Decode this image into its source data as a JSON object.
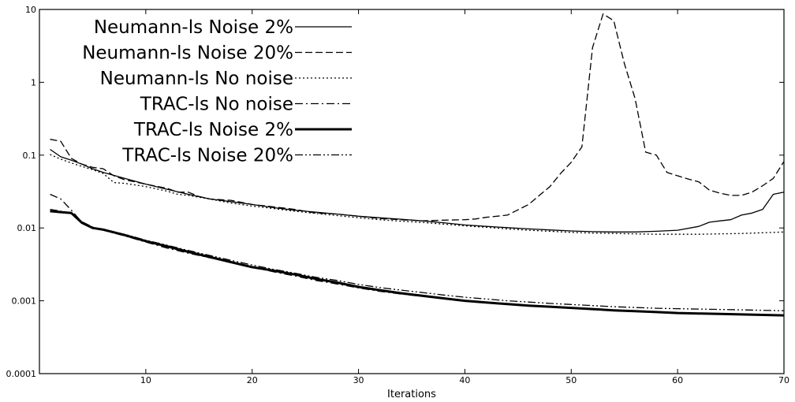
{
  "chart_data": {
    "type": "line",
    "xlabel": "Iterations",
    "ylabel": "",
    "yscale": "log",
    "xlim": [
      0,
      70
    ],
    "ylim": [
      0.0001,
      10
    ],
    "x_ticks": [
      10,
      20,
      30,
      40,
      50,
      60,
      70
    ],
    "y_ticks": [
      {
        "value": 10,
        "label": "10"
      },
      {
        "value": 1,
        "label": "1"
      },
      {
        "value": 0.1,
        "label": "0.1"
      },
      {
        "value": 0.01,
        "label": "0.01"
      },
      {
        "value": 0.001,
        "label": "0.001"
      },
      {
        "value": 0.0001,
        "label": "0.0001"
      }
    ],
    "grid": false,
    "legend_position": "top-left",
    "series": [
      {
        "name": "Neumann-ls Noise 2%",
        "style": "solid",
        "width": 1.3,
        "points": [
          [
            1,
            0.12
          ],
          [
            2,
            0.095
          ],
          [
            3,
            0.085
          ],
          [
            4,
            0.075
          ],
          [
            5,
            0.065
          ],
          [
            6,
            0.058
          ],
          [
            8,
            0.048
          ],
          [
            10,
            0.04
          ],
          [
            12,
            0.034
          ],
          [
            14,
            0.029
          ],
          [
            16,
            0.025
          ],
          [
            18,
            0.023
          ],
          [
            20,
            0.021
          ],
          [
            22,
            0.019
          ],
          [
            24,
            0.0175
          ],
          [
            26,
            0.0165
          ],
          [
            28,
            0.0155
          ],
          [
            30,
            0.0145
          ],
          [
            32,
            0.0138
          ],
          [
            34,
            0.0132
          ],
          [
            36,
            0.0125
          ],
          [
            38,
            0.0118
          ],
          [
            40,
            0.011
          ],
          [
            42,
            0.0105
          ],
          [
            44,
            0.0101
          ],
          [
            46,
            0.0097
          ],
          [
            48,
            0.0094
          ],
          [
            50,
            0.0091
          ],
          [
            52,
            0.0089
          ],
          [
            54,
            0.0088
          ],
          [
            56,
            0.0088
          ],
          [
            58,
            0.009
          ],
          [
            60,
            0.0093
          ],
          [
            62,
            0.0105
          ],
          [
            63,
            0.012
          ],
          [
            64,
            0.0125
          ],
          [
            65,
            0.013
          ],
          [
            66,
            0.015
          ],
          [
            67,
            0.016
          ],
          [
            68,
            0.018
          ],
          [
            69,
            0.029
          ],
          [
            70,
            0.031
          ]
        ]
      },
      {
        "name": "Neumann-ls Noise 20%",
        "style": "dashed",
        "width": 1.3,
        "points": [
          [
            1,
            0.165
          ],
          [
            2,
            0.155
          ],
          [
            3,
            0.09
          ],
          [
            4,
            0.075
          ],
          [
            5,
            0.068
          ],
          [
            6,
            0.065
          ],
          [
            7,
            0.052
          ],
          [
            8,
            0.046
          ],
          [
            10,
            0.04
          ],
          [
            12,
            0.035
          ],
          [
            13,
            0.031
          ],
          [
            14,
            0.031
          ],
          [
            15,
            0.027
          ],
          [
            16,
            0.025
          ],
          [
            18,
            0.024
          ],
          [
            20,
            0.021
          ],
          [
            22,
            0.0195
          ],
          [
            24,
            0.018
          ],
          [
            26,
            0.016
          ],
          [
            28,
            0.0155
          ],
          [
            30,
            0.0145
          ],
          [
            32,
            0.0135
          ],
          [
            34,
            0.013
          ],
          [
            36,
            0.0125
          ],
          [
            38,
            0.0128
          ],
          [
            40,
            0.013
          ],
          [
            41,
            0.0133
          ],
          [
            42,
            0.014
          ],
          [
            44,
            0.015
          ],
          [
            46,
            0.021
          ],
          [
            47,
            0.028
          ],
          [
            48,
            0.037
          ],
          [
            49,
            0.056
          ],
          [
            50,
            0.08
          ],
          [
            51,
            0.13
          ],
          [
            52,
            3.0
          ],
          [
            53,
            8.7
          ],
          [
            54,
            7.0
          ],
          [
            55,
            1.8
          ],
          [
            56,
            0.6
          ],
          [
            57,
            0.11
          ],
          [
            58,
            0.1
          ],
          [
            59,
            0.058
          ],
          [
            60,
            0.052
          ],
          [
            61,
            0.047
          ],
          [
            62,
            0.043
          ],
          [
            63,
            0.033
          ],
          [
            64,
            0.03
          ],
          [
            65,
            0.028
          ],
          [
            66,
            0.028
          ],
          [
            67,
            0.031
          ],
          [
            68,
            0.038
          ],
          [
            69,
            0.048
          ],
          [
            70,
            0.082
          ]
        ]
      },
      {
        "name": "Neumann-ls No noise",
        "style": "dotted",
        "width": 1.3,
        "points": [
          [
            1,
            0.102
          ],
          [
            2,
            0.088
          ],
          [
            3,
            0.078
          ],
          [
            4,
            0.07
          ],
          [
            5,
            0.063
          ],
          [
            6,
            0.056
          ],
          [
            7,
            0.042
          ],
          [
            8,
            0.041
          ],
          [
            10,
            0.037
          ],
          [
            12,
            0.032
          ],
          [
            13,
            0.029
          ],
          [
            14,
            0.028
          ],
          [
            16,
            0.025
          ],
          [
            18,
            0.022
          ],
          [
            20,
            0.02
          ],
          [
            22,
            0.0185
          ],
          [
            24,
            0.017
          ],
          [
            26,
            0.0158
          ],
          [
            28,
            0.0148
          ],
          [
            30,
            0.0138
          ],
          [
            32,
            0.013
          ],
          [
            34,
            0.0124
          ],
          [
            36,
            0.0119
          ],
          [
            38,
            0.0113
          ],
          [
            40,
            0.0107
          ],
          [
            42,
            0.0102
          ],
          [
            44,
            0.0097
          ],
          [
            46,
            0.0093
          ],
          [
            48,
            0.009
          ],
          [
            50,
            0.0087
          ],
          [
            52,
            0.0085
          ],
          [
            54,
            0.0084
          ],
          [
            56,
            0.0083
          ],
          [
            58,
            0.0082
          ],
          [
            60,
            0.0082
          ],
          [
            62,
            0.0082
          ],
          [
            64,
            0.0083
          ],
          [
            66,
            0.0084
          ],
          [
            68,
            0.0086
          ],
          [
            70,
            0.0088
          ]
        ]
      },
      {
        "name": "TRAC-ls No noise",
        "style": "dashdot",
        "width": 1.3,
        "points": [
          [
            1,
            0.029
          ],
          [
            2,
            0.025
          ],
          [
            3,
            0.0175
          ],
          [
            4,
            0.012
          ],
          [
            5,
            0.01
          ],
          [
            6,
            0.0093
          ],
          [
            8,
            0.0078
          ],
          [
            10,
            0.0064
          ],
          [
            12,
            0.0053
          ],
          [
            14,
            0.0045
          ],
          [
            16,
            0.0039
          ],
          [
            18,
            0.0034
          ],
          [
            20,
            0.0029
          ],
          [
            22,
            0.0025
          ],
          [
            24,
            0.0022
          ],
          [
            26,
            0.0019
          ],
          [
            28,
            0.0017
          ],
          [
            30,
            0.0015
          ],
          [
            32,
            0.00135
          ],
          [
            34,
            0.00124
          ],
          [
            36,
            0.00115
          ],
          [
            38,
            0.00107
          ],
          [
            40,
            0.001
          ],
          [
            42,
            0.00095
          ],
          [
            44,
            0.0009
          ],
          [
            46,
            0.00086
          ],
          [
            48,
            0.00082
          ],
          [
            50,
            0.00079
          ],
          [
            52,
            0.00076
          ],
          [
            54,
            0.00074
          ],
          [
            56,
            0.00072
          ],
          [
            58,
            0.0007
          ],
          [
            60,
            0.00068
          ],
          [
            62,
            0.00067
          ],
          [
            64,
            0.00066
          ],
          [
            66,
            0.00065
          ],
          [
            68,
            0.00064
          ],
          [
            70,
            0.00063
          ]
        ]
      },
      {
        "name": "TRAC-ls Noise 2%",
        "style": "solid",
        "width": 3,
        "points": [
          [
            1,
            0.017
          ],
          [
            2,
            0.0165
          ],
          [
            3,
            0.016
          ],
          [
            4,
            0.0118
          ],
          [
            5,
            0.01
          ],
          [
            6,
            0.0095
          ],
          [
            8,
            0.008
          ],
          [
            10,
            0.0066
          ],
          [
            12,
            0.0056
          ],
          [
            14,
            0.0047
          ],
          [
            16,
            0.004
          ],
          [
            18,
            0.0034
          ],
          [
            20,
            0.0029
          ],
          [
            22,
            0.0026
          ],
          [
            24,
            0.0023
          ],
          [
            26,
            0.002
          ],
          [
            28,
            0.00178
          ],
          [
            30,
            0.00155
          ],
          [
            32,
            0.0014
          ],
          [
            34,
            0.00127
          ],
          [
            36,
            0.00117
          ],
          [
            38,
            0.00108
          ],
          [
            40,
            0.001
          ],
          [
            42,
            0.00095
          ],
          [
            44,
            0.0009
          ],
          [
            46,
            0.00086
          ],
          [
            48,
            0.00083
          ],
          [
            50,
            0.0008
          ],
          [
            52,
            0.00077
          ],
          [
            54,
            0.00074
          ],
          [
            56,
            0.00072
          ],
          [
            58,
            0.0007
          ],
          [
            60,
            0.00068
          ],
          [
            62,
            0.00067
          ],
          [
            64,
            0.00066
          ],
          [
            66,
            0.00065
          ],
          [
            68,
            0.00064
          ],
          [
            70,
            0.00063
          ]
        ]
      },
      {
        "name": "TRAC-ls Noise 20%",
        "style": "dashdotdot",
        "width": 1.3,
        "points": [
          [
            1,
            0.018
          ],
          [
            2,
            0.017
          ],
          [
            3,
            0.0162
          ],
          [
            4,
            0.0122
          ],
          [
            5,
            0.0103
          ],
          [
            6,
            0.0095
          ],
          [
            8,
            0.0082
          ],
          [
            10,
            0.0068
          ],
          [
            12,
            0.0058
          ],
          [
            14,
            0.0049
          ],
          [
            16,
            0.0042
          ],
          [
            18,
            0.0036
          ],
          [
            20,
            0.0031
          ],
          [
            22,
            0.0027
          ],
          [
            24,
            0.0024
          ],
          [
            26,
            0.0021
          ],
          [
            28,
            0.0019
          ],
          [
            30,
            0.00168
          ],
          [
            32,
            0.00152
          ],
          [
            34,
            0.0014
          ],
          [
            36,
            0.0013
          ],
          [
            38,
            0.0012
          ],
          [
            40,
            0.00112
          ],
          [
            42,
            0.00106
          ],
          [
            44,
            0.001
          ],
          [
            46,
            0.00096
          ],
          [
            48,
            0.00092
          ],
          [
            50,
            0.00089
          ],
          [
            52,
            0.00086
          ],
          [
            54,
            0.00083
          ],
          [
            56,
            0.00081
          ],
          [
            58,
            0.00079
          ],
          [
            60,
            0.00078
          ],
          [
            62,
            0.00077
          ],
          [
            64,
            0.00076
          ],
          [
            66,
            0.00075
          ],
          [
            68,
            0.00074
          ],
          [
            70,
            0.00073
          ]
        ]
      }
    ]
  }
}
